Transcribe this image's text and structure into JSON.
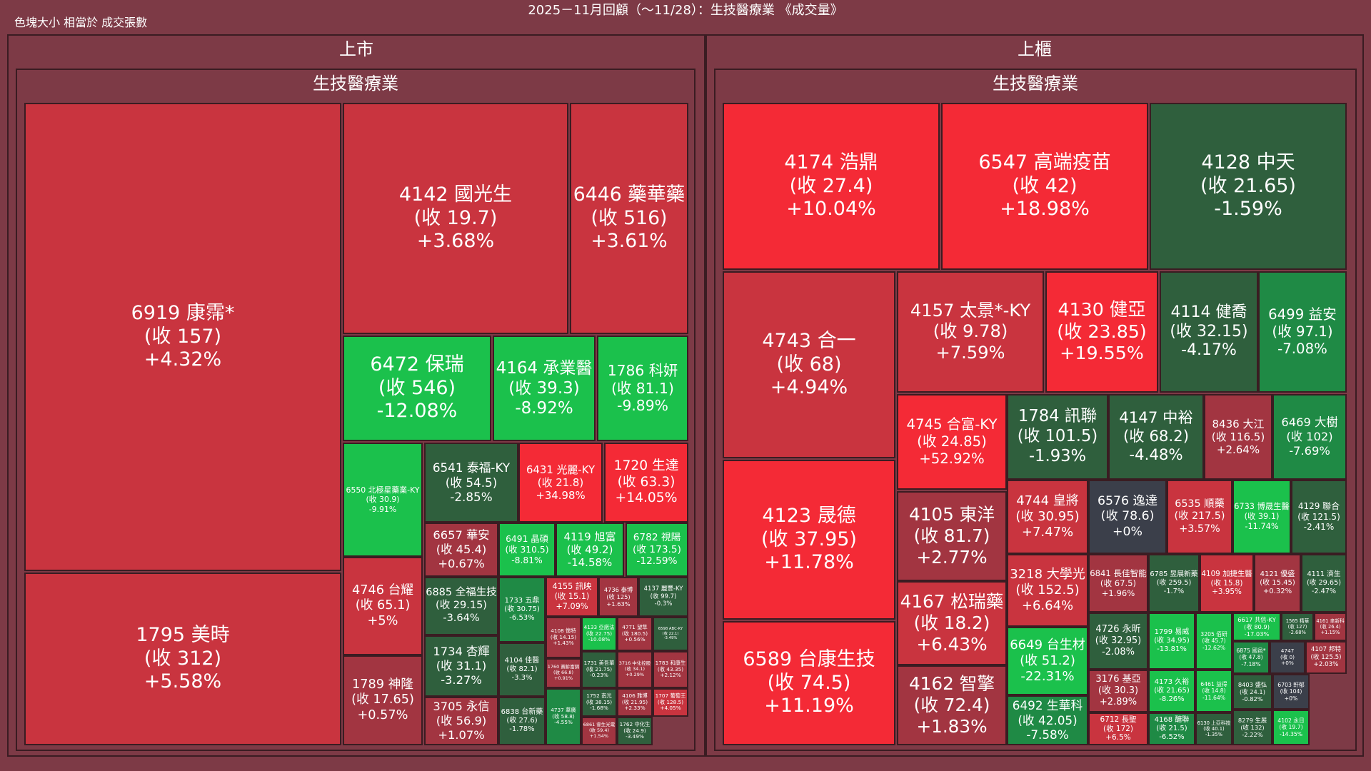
{
  "title": "2025－11月回顧（～11/28）：生技醫療業 《成交量》",
  "legend_note": "色塊大小 相當於 成交張數",
  "colors": {
    "bg": "#7d3a46",
    "up_strong": "#f42a36",
    "up_mid": "#c9343f",
    "up_weak": "#a23541",
    "flat": "#3b3f4a",
    "down_weak": "#2f5f3d",
    "down_mid": "#1f8a45",
    "down_strong": "#1bc14c"
  },
  "chart_data": {
    "type": "treemap",
    "size_metric": "成交張數",
    "markets": [
      {
        "name": "上市",
        "industry": "生技醫療業",
        "stocks": [
          {
            "code": "6919",
            "name": "康霈*",
            "close": "157",
            "change": "+4.32%",
            "pct": 4.32
          },
          {
            "code": "1795",
            "name": "美時",
            "close": "312",
            "change": "+5.58%",
            "pct": 5.58
          },
          {
            "code": "4142",
            "name": "國光生",
            "close": "19.7",
            "change": "+3.68%",
            "pct": 3.68
          },
          {
            "code": "6446",
            "name": "藥華藥",
            "close": "516",
            "change": "+3.61%",
            "pct": 3.61
          },
          {
            "code": "6472",
            "name": "保瑞",
            "close": "546",
            "change": "-12.08%",
            "pct": -12.08
          },
          {
            "code": "4164",
            "name": "承業醫",
            "close": "39.3",
            "change": "-8.92%",
            "pct": -8.92
          },
          {
            "code": "1786",
            "name": "科妍",
            "close": "81.1",
            "change": "-9.89%",
            "pct": -9.89
          },
          {
            "code": "6550",
            "name": "北極星藥業-KY",
            "close": "30.9",
            "change": "-9.91%",
            "pct": -9.91
          },
          {
            "code": "6541",
            "name": "泰福-KY",
            "close": "54.5",
            "change": "-2.85%",
            "pct": -2.85
          },
          {
            "code": "6431",
            "name": "光麗-KY",
            "close": "21.8",
            "change": "+34.98%",
            "pct": 34.98
          },
          {
            "code": "1720",
            "name": "生達",
            "close": "63.3",
            "change": "+14.05%",
            "pct": 14.05
          },
          {
            "code": "6657",
            "name": "華安",
            "close": "45.4",
            "change": "+0.67%",
            "pct": 0.67
          },
          {
            "code": "6491",
            "name": "晶碩",
            "close": "310.5",
            "change": "-8.81%",
            "pct": -8.81
          },
          {
            "code": "4119",
            "name": "旭富",
            "close": "49.2",
            "change": "-14.58%",
            "pct": -14.58
          },
          {
            "code": "6782",
            "name": "視陽",
            "close": "173.5",
            "change": "-12.59%",
            "pct": -12.59
          },
          {
            "code": "4746",
            "name": "台耀",
            "close": "65.1",
            "change": "+5%",
            "pct": 5
          },
          {
            "code": "6885",
            "name": "全福生技",
            "close": "29.15",
            "change": "-3.64%",
            "pct": -3.64
          },
          {
            "code": "1733",
            "name": "五鼎",
            "close": "30.75",
            "change": "-6.53%",
            "pct": -6.53
          },
          {
            "code": "4155",
            "name": "訊映",
            "close": "15.1",
            "change": "+7.09%",
            "pct": 7.09
          },
          {
            "code": "4736",
            "name": "泰博",
            "close": "125",
            "change": "+1.63%",
            "pct": 1.63
          },
          {
            "code": "4137",
            "name": "麗豐-KY",
            "close": "99.7",
            "change": "-0.3%",
            "pct": -0.3
          },
          {
            "code": "1734",
            "name": "杏輝",
            "close": "31.1",
            "change": "-3.27%",
            "pct": -3.27
          },
          {
            "code": "4104",
            "name": "佳醫",
            "close": "82.1",
            "change": "-3.3%",
            "pct": -3.3
          },
          {
            "code": "4108",
            "name": "懷特",
            "close": "14.15",
            "change": "+1.43%",
            "pct": 1.43
          },
          {
            "code": "4133",
            "name": "亞諾法",
            "close": "22.75",
            "change": "-10.08%",
            "pct": -10.08
          },
          {
            "code": "4771",
            "name": "望隼",
            "close": "180.5",
            "change": "+0.56%",
            "pct": 0.56
          },
          {
            "code": "6598",
            "name": "ABC-KY",
            "close": "22.1",
            "change": "-3.49%",
            "pct": -3.49
          },
          {
            "code": "1789",
            "name": "神隆",
            "close": "17.65",
            "change": "+0.57%",
            "pct": 0.57
          },
          {
            "code": "3705",
            "name": "永信",
            "close": "56.9",
            "change": "+1.07%",
            "pct": 1.07
          },
          {
            "code": "6838",
            "name": "台新藥",
            "close": "27.6",
            "change": "-1.78%",
            "pct": -1.78
          },
          {
            "code": "1760",
            "name": "寶齡富錦",
            "close": "66.8",
            "change": "+0.91%",
            "pct": 0.91
          },
          {
            "code": "1731",
            "name": "美吾華",
            "close": "21.75",
            "change": "-0.23%",
            "pct": -0.23
          },
          {
            "code": "3716",
            "name": "中化控股",
            "close": "34.1",
            "change": "+0.29%",
            "pct": 0.29
          },
          {
            "code": "1783",
            "name": "和康生",
            "close": "43.35",
            "change": "+2.12%",
            "pct": 2.12
          },
          {
            "code": "4737",
            "name": "華廣",
            "close": "58.8",
            "change": "-4.55%",
            "pct": -4.55
          },
          {
            "code": "1752",
            "name": "南光",
            "close": "38.15",
            "change": "-1.68%",
            "pct": -1.68
          },
          {
            "code": "4106",
            "name": "雃博",
            "close": "21.95",
            "change": "+2.33%",
            "pct": 2.33
          },
          {
            "code": "1707",
            "name": "葡萄王",
            "close": "128.5",
            "change": "+4.05%",
            "pct": 4.05
          },
          {
            "code": "6861",
            "name": "睿生光電",
            "close": "59.4",
            "change": "+1.54%",
            "pct": 1.54
          },
          {
            "code": "1762",
            "name": "中化生",
            "close": "24.9",
            "change": "-3.49%",
            "pct": -3.49
          }
        ]
      },
      {
        "name": "上櫃",
        "industry": "生技醫療業",
        "stocks": [
          {
            "code": "4174",
            "name": "浩鼎",
            "close": "27.4",
            "change": "+10.04%",
            "pct": 10.04
          },
          {
            "code": "6547",
            "name": "高端疫苗",
            "close": "42",
            "change": "+18.98%",
            "pct": 18.98
          },
          {
            "code": "4128",
            "name": "中天",
            "close": "21.65",
            "change": "-1.59%",
            "pct": -1.59
          },
          {
            "code": "4743",
            "name": "合一",
            "close": "68",
            "change": "+4.94%",
            "pct": 4.94
          },
          {
            "code": "4123",
            "name": "晟德",
            "close": "37.95",
            "change": "+11.78%",
            "pct": 11.78
          },
          {
            "code": "6589",
            "name": "台康生技",
            "close": "74.5",
            "change": "+11.19%",
            "pct": 11.19
          },
          {
            "code": "4157",
            "name": "太景*-KY",
            "close": "9.78",
            "change": "+7.59%",
            "pct": 7.59
          },
          {
            "code": "4130",
            "name": "健亞",
            "close": "23.85",
            "change": "+19.55%",
            "pct": 19.55
          },
          {
            "code": "4114",
            "name": "健喬",
            "close": "32.15",
            "change": "-4.17%",
            "pct": -4.17
          },
          {
            "code": "6499",
            "name": "益安",
            "close": "97.1",
            "change": "-7.08%",
            "pct": -7.08
          },
          {
            "code": "4745",
            "name": "合富-KY",
            "close": "24.85",
            "change": "+52.92%",
            "pct": 52.92
          },
          {
            "code": "1784",
            "name": "訊聯",
            "close": "101.5",
            "change": "-1.93%",
            "pct": -1.93
          },
          {
            "code": "4147",
            "name": "中裕",
            "close": "68.2",
            "change": "-4.48%",
            "pct": -4.48
          },
          {
            "code": "8436",
            "name": "大江",
            "close": "116.5",
            "change": "+2.64%",
            "pct": 2.64
          },
          {
            "code": "6469",
            "name": "大樹",
            "close": "102",
            "change": "-7.69%",
            "pct": -7.69
          },
          {
            "code": "4105",
            "name": "東洋",
            "close": "81.7",
            "change": "+2.77%",
            "pct": 2.77
          },
          {
            "code": "4167",
            "name": "松瑞藥",
            "close": "18.2",
            "change": "+6.43%",
            "pct": 6.43
          },
          {
            "code": "4162",
            "name": "智擎",
            "close": "72.4",
            "change": "+1.83%",
            "pct": 1.83
          },
          {
            "code": "4744",
            "name": "皇將",
            "close": "30.95",
            "change": "+7.47%",
            "pct": 7.47
          },
          {
            "code": "6576",
            "name": "逸達",
            "close": "78.6",
            "change": "+0%",
            "pct": 0
          },
          {
            "code": "6535",
            "name": "順藥",
            "close": "217.5",
            "change": "+3.57%",
            "pct": 3.57
          },
          {
            "code": "6733",
            "name": "博晟生醫",
            "close": "39.1",
            "change": "-11.74%",
            "pct": -11.74
          },
          {
            "code": "4129",
            "name": "聯合",
            "close": "121.5",
            "change": "-2.41%",
            "pct": -2.41
          },
          {
            "code": "3218",
            "name": "大學光",
            "close": "152.5",
            "change": "+6.64%",
            "pct": 6.64
          },
          {
            "code": "6841",
            "name": "長佳智能",
            "close": "67.5",
            "change": "+1.96%",
            "pct": 1.96
          },
          {
            "code": "6785",
            "name": "昱展新藥",
            "close": "259.5",
            "change": "-1.7%",
            "pct": -1.7
          },
          {
            "code": "4109",
            "name": "加捷生醫",
            "close": "15.8",
            "change": "+3.95%",
            "pct": 3.95
          },
          {
            "code": "4121",
            "name": "優盛",
            "close": "15.45",
            "change": "+0.32%",
            "pct": 0.32
          },
          {
            "code": "4111",
            "name": "濟生",
            "close": "29.65",
            "change": "-2.47%",
            "pct": -2.47
          },
          {
            "code": "6649",
            "name": "台生材",
            "close": "51.2",
            "change": "-22.31%",
            "pct": -22.31
          },
          {
            "code": "4726",
            "name": "永昕",
            "close": "32.95",
            "change": "-2.08%",
            "pct": -2.08
          },
          {
            "code": "1799",
            "name": "易威",
            "close": "34.95",
            "change": "-13.81%",
            "pct": -13.81
          },
          {
            "code": "3205",
            "name": "佰研",
            "close": "45.7",
            "change": "-12.62%",
            "pct": -12.62
          },
          {
            "code": "6617",
            "name": "共信-KY",
            "close": "80.9",
            "change": "-17.03%",
            "pct": -17.03
          },
          {
            "code": "1565",
            "name": "精華",
            "close": "127",
            "change": "-2.68%",
            "pct": -2.68
          },
          {
            "code": "4161",
            "name": "聿新科",
            "close": "26.4",
            "change": "+1.15%",
            "pct": 1.15
          },
          {
            "code": "6875",
            "name": "國邑*",
            "close": "47.8",
            "change": "-7.18%",
            "pct": -7.18
          },
          {
            "code": "4747",
            "name": "",
            "close": "0",
            "change": "+0%",
            "pct": 0
          },
          {
            "code": "4107",
            "name": "邦特",
            "close": "125.5",
            "change": "+2.03%",
            "pct": 2.03
          },
          {
            "code": "6492",
            "name": "生華科",
            "close": "42.05",
            "change": "-7.58%",
            "pct": -7.58
          },
          {
            "code": "3176",
            "name": "基亞",
            "close": "30.3",
            "change": "+2.89%",
            "pct": 2.89
          },
          {
            "code": "4173",
            "name": "久裕",
            "close": "21.65",
            "change": "-8.26%",
            "pct": -8.26
          },
          {
            "code": "6461",
            "name": "益得",
            "close": "14.8",
            "change": "-11.64%",
            "pct": -11.64
          },
          {
            "code": "6712",
            "name": "長聖",
            "close": "172",
            "change": "+6.5%",
            "pct": 6.5
          },
          {
            "code": "4168",
            "name": "醣聯",
            "close": "21.5",
            "change": "-6.52%",
            "pct": -6.52
          },
          {
            "code": "6130",
            "name": "上亞科技",
            "close": "40.1",
            "change": "-1.35%",
            "pct": -1.35
          },
          {
            "code": "8403",
            "name": "盛弘",
            "close": "24.1",
            "change": "-0.82%",
            "pct": -0.82
          },
          {
            "code": "6703",
            "name": "軒郁",
            "close": "104",
            "change": "+0%",
            "pct": 0
          },
          {
            "code": "8279",
            "name": "生展",
            "close": "132",
            "change": "-2.22%",
            "pct": -2.22
          },
          {
            "code": "4102",
            "name": "永日",
            "close": "19.7",
            "change": "-14.35%",
            "pct": -14.35
          }
        ]
      }
    ]
  }
}
